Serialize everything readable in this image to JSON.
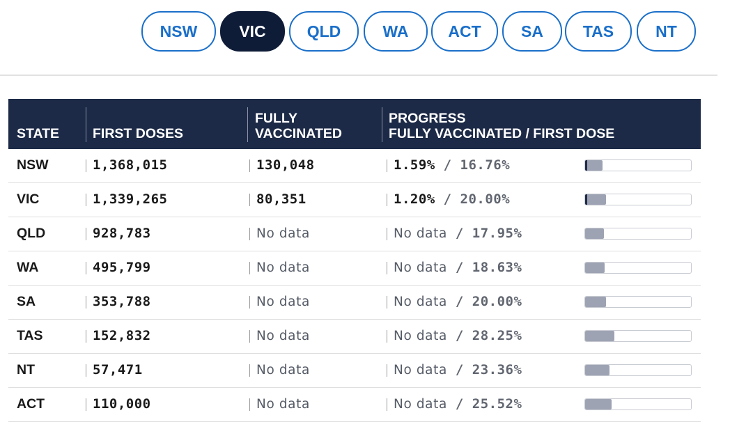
{
  "tabs": [
    {
      "label": "NSW",
      "active": false
    },
    {
      "label": "VIC",
      "active": true
    },
    {
      "label": "QLD",
      "active": false
    },
    {
      "label": "WA",
      "active": false
    },
    {
      "label": "ACT",
      "active": false
    },
    {
      "label": "SA",
      "active": false
    },
    {
      "label": "TAS",
      "active": false
    },
    {
      "label": "NT",
      "active": false
    }
  ],
  "table": {
    "headers": {
      "state": "STATE",
      "first_doses": "FIRST DOSES",
      "fully_vaccinated_line1": "FULLY",
      "fully_vaccinated_line2": "VACCINATED",
      "progress_line1": "PROGRESS",
      "progress_line2": "FULLY VACCINATED / FIRST DOSE"
    },
    "rows": [
      {
        "state": "NSW",
        "first_doses": "1,368,015",
        "fully_vaccinated": "130,048",
        "pct_full": "1.59%",
        "sep": " / ",
        "pct_first": "16.76%",
        "bar_full": 0.0159,
        "bar_first": 0.1676
      },
      {
        "state": "VIC",
        "first_doses": "1,339,265",
        "fully_vaccinated": "80,351",
        "pct_full": "1.20%",
        "sep": " / ",
        "pct_first": "20.00%",
        "bar_full": 0.012,
        "bar_first": 0.2
      },
      {
        "state": "QLD",
        "first_doses": "928,783",
        "fully_vaccinated": "No data",
        "pct_full": "No data",
        "sep": " / ",
        "pct_first": "17.95%",
        "bar_full": 0,
        "bar_first": 0.1795
      },
      {
        "state": "WA",
        "first_doses": "495,799",
        "fully_vaccinated": "No data",
        "pct_full": "No data",
        "sep": " / ",
        "pct_first": "18.63%",
        "bar_full": 0,
        "bar_first": 0.1863
      },
      {
        "state": "SA",
        "first_doses": "353,788",
        "fully_vaccinated": "No data",
        "pct_full": "No data",
        "sep": " / ",
        "pct_first": "20.00%",
        "bar_full": 0,
        "bar_first": 0.2
      },
      {
        "state": "TAS",
        "first_doses": "152,832",
        "fully_vaccinated": "No data",
        "pct_full": "No data",
        "sep": " / ",
        "pct_first": "28.25%",
        "bar_full": 0,
        "bar_first": 0.2825
      },
      {
        "state": "NT",
        "first_doses": "57,471",
        "fully_vaccinated": "No data",
        "pct_full": "No data",
        "sep": " / ",
        "pct_first": "23.36%",
        "bar_full": 0,
        "bar_first": 0.2336
      },
      {
        "state": "ACT",
        "first_doses": "110,000",
        "fully_vaccinated": "No data",
        "pct_full": "No data",
        "sep": " / ",
        "pct_first": "25.52%",
        "bar_full": 0,
        "bar_first": 0.2552
      }
    ]
  },
  "colors": {
    "tab_border": "#1a6fc9",
    "tab_active_bg": "#0f1c38",
    "header_bg": "#1d2a47",
    "bar_first_dose": "#9ea3b3",
    "bar_fully_vaccinated": "#1d2a47"
  }
}
